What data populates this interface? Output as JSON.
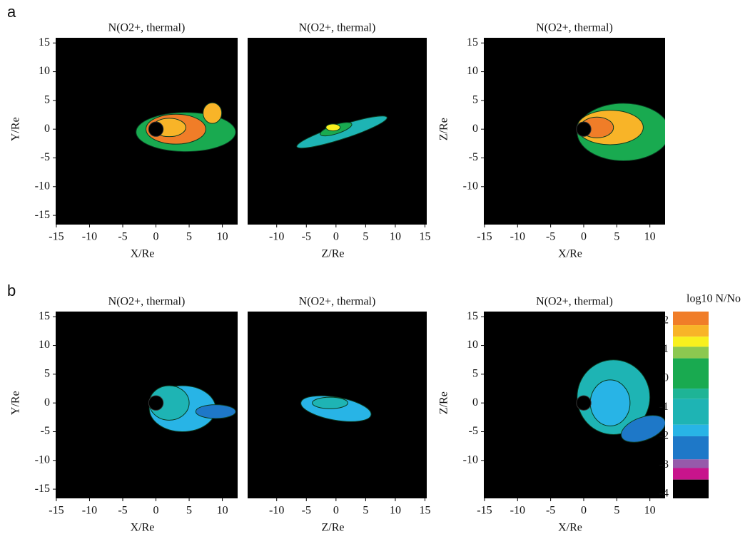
{
  "panel_labels": [
    "a",
    "b"
  ],
  "chart_data": [
    {
      "type": "contour",
      "title": "N(O2+, thermal)",
      "x_label": "X/Re",
      "y_label": "Y/Re",
      "xlim": [
        -15.1,
        12.3
      ],
      "ylim": [
        -16.6,
        15.9
      ],
      "xticks": [
        -15,
        -10,
        -5,
        0,
        5,
        10
      ],
      "yticks": [
        15,
        10,
        5,
        0,
        -5,
        -10,
        -15
      ]
    },
    {
      "type": "contour",
      "title": "N(O2+, thermal)",
      "x_label": "Z/Re",
      "xlim": [
        -14.9,
        15.3
      ],
      "ylim": [
        -16.6,
        15.9
      ],
      "xticks": [
        -10,
        -5,
        0,
        5,
        10,
        15
      ]
    },
    {
      "type": "contour",
      "title": "N(O2+, thermal)",
      "x_label": "X/Re",
      "y_label": "Z/Re",
      "xlim": [
        -15.1,
        12.3
      ],
      "ylim": [
        -16.6,
        15.9
      ],
      "xticks": [
        -15,
        -10,
        -5,
        0,
        5,
        10
      ],
      "yticks": [
        15,
        10,
        5,
        0,
        -5,
        -10
      ]
    },
    {
      "type": "contour",
      "title": "N(O2+, thermal)",
      "x_label": "X/Re",
      "y_label": "Y/Re",
      "xlim": [
        -15.1,
        12.3
      ],
      "ylim": [
        -16.6,
        15.9
      ],
      "xticks": [
        -15,
        -10,
        -5,
        0,
        5,
        10
      ],
      "yticks": [
        15,
        10,
        5,
        0,
        -5,
        -10,
        -15
      ]
    },
    {
      "type": "contour",
      "title": "N(O2+, thermal)",
      "x_label": "Z/Re",
      "xlim": [
        -14.9,
        15.3
      ],
      "ylim": [
        -16.6,
        15.9
      ],
      "xticks": [
        -10,
        -5,
        0,
        5,
        10,
        15
      ]
    },
    {
      "type": "contour",
      "title": "N(O2+, thermal)",
      "x_label": "X/Re",
      "y_label": "Z/Re",
      "xlim": [
        -15.1,
        12.3
      ],
      "ylim": [
        -16.6,
        15.9
      ],
      "xticks": [
        -15,
        -10,
        -5,
        0,
        5,
        10
      ],
      "yticks": [
        15,
        10,
        5,
        0,
        -5,
        -10
      ]
    }
  ],
  "colorbar": {
    "label": "log10 N/No",
    "lim": [
      -4.15,
      2.32
    ],
    "ticks": [
      2,
      1,
      0,
      -1,
      -2,
      -3,
      -4
    ],
    "levels": [
      2.32,
      1.85,
      1.45,
      1.1,
      0.7,
      -0.35,
      -0.7,
      -1.6,
      -2.0,
      -2.8,
      -3.1,
      -3.5,
      -4.15
    ],
    "colors": [
      "#f07d28",
      "#f8b428",
      "#f8f01e",
      "#8cc850",
      "#19aa50",
      "#1eb496",
      "#1eb4b4",
      "#28b4e6",
      "#1e78c8",
      "#965aaa",
      "#c8148c",
      "#000000"
    ]
  }
}
